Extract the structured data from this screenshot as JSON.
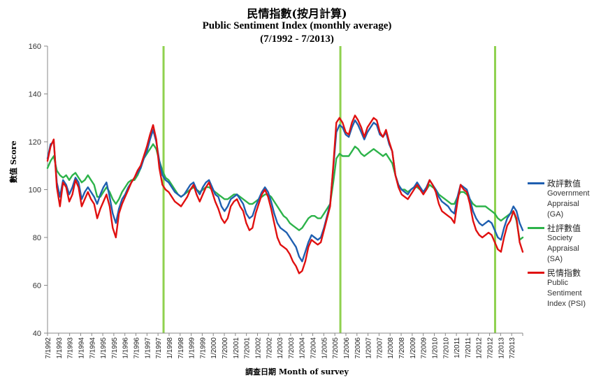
{
  "titles": {
    "zh": "民情指數(按月計算)",
    "en": "Public Sentiment Index (monthly average)",
    "period": "(7/1992 - 7/2013)"
  },
  "legend": [
    {
      "zh": "政評數值",
      "en": "Government Appraisal (GA)",
      "color": "#1f5fb0"
    },
    {
      "zh": "社評數值",
      "en": "Society Appraisal (SA)",
      "color": "#2db34a"
    },
    {
      "zh": "民情指數",
      "en": "Public Sentiment Index (PSI)",
      "color": "#e01010"
    }
  ],
  "chart_data": {
    "type": "line",
    "xlabel": "調查日期  Month  of  survey",
    "ylabel": "數值 Score",
    "ylim": [
      40,
      160
    ],
    "yticks": [
      40,
      60,
      80,
      100,
      120,
      140,
      160
    ],
    "x_tick_labels": [
      "7/1992",
      "1/1993",
      "7/1993",
      "1/1994",
      "7/1994",
      "1/1995",
      "7/1995",
      "1/1996",
      "7/1996",
      "1/1997",
      "7/1997",
      "1/1998",
      "7/1998",
      "1/1999",
      "7/1999",
      "1/2000",
      "7/2000",
      "1/2001",
      "7/2001",
      "1/2002",
      "7/2002",
      "1/2003",
      "7/2003",
      "1/2004",
      "7/2004",
      "1/2005",
      "7/2005",
      "1/2006",
      "7/2006",
      "1/2007",
      "7/2007",
      "1/2008",
      "7/2008",
      "1/2009",
      "7/2009",
      "1/2010",
      "7/2010",
      "1/2011",
      "7/2011",
      "1/2012",
      "7/2012",
      "1/2013",
      "7/2013"
    ],
    "vertical_markers": [
      "7/1997",
      "7/2005",
      "7/2012"
    ],
    "marker_color": "#8fd14f",
    "grid": false,
    "legend_position": "right",
    "series": [
      {
        "name": "政評數值 Government Appraisal (GA)",
        "color": "#1f5fb0",
        "values": [
          113,
          119,
          120,
          103,
          97,
          104,
          102,
          98,
          101,
          105,
          103,
          96,
          99,
          101,
          99,
          97,
          94,
          98,
          101,
          103,
          97,
          90,
          86,
          92,
          96,
          98,
          101,
          103,
          105,
          107,
          109,
          113,
          116,
          121,
          125,
          120,
          112,
          106,
          104,
          103,
          101,
          99,
          98,
          97,
          98,
          100,
          102,
          103,
          100,
          98,
          101,
          103,
          104,
          101,
          98,
          97,
          93,
          91,
          93,
          96,
          97,
          98,
          96,
          94,
          90,
          88,
          89,
          93,
          96,
          99,
          101,
          99,
          95,
          90,
          86,
          84,
          83,
          82,
          80,
          78,
          76,
          72,
          70,
          74,
          78,
          81,
          80,
          79,
          80,
          84,
          89,
          94,
          109,
          124,
          127,
          126,
          123,
          122,
          126,
          129,
          127,
          124,
          121,
          124,
          126,
          128,
          127,
          123,
          122,
          124,
          119,
          116,
          106,
          102,
          100,
          99,
          98,
          100,
          101,
          103,
          101,
          99,
          101,
          104,
          102,
          100,
          97,
          95,
          94,
          93,
          91,
          90,
          97,
          102,
          101,
          100,
          96,
          91,
          88,
          86,
          85,
          86,
          87,
          86,
          83,
          80,
          79,
          84,
          88,
          90,
          93,
          91,
          86,
          83
        ]
      },
      {
        "name": "社評數值 Society Appraisal (SA)",
        "color": "#2db34a",
        "values": [
          109,
          112,
          114,
          108,
          106,
          105,
          106,
          104,
          106,
          107,
          105,
          103,
          104,
          106,
          104,
          102,
          97,
          97,
          99,
          101,
          99,
          96,
          94,
          96,
          99,
          101,
          103,
          104,
          104,
          106,
          109,
          113,
          115,
          117,
          119,
          117,
          112,
          108,
          105,
          104,
          102,
          100,
          98,
          97,
          98,
          99,
          100,
          101,
          100,
          99,
          100,
          101,
          101,
          100,
          99,
          98,
          97,
          96,
          96,
          97,
          98,
          98,
          97,
          96,
          95,
          94,
          94,
          95,
          96,
          97,
          98,
          98,
          97,
          95,
          93,
          91,
          89,
          88,
          86,
          85,
          84,
          83,
          84,
          86,
          88,
          89,
          89,
          88,
          88,
          90,
          92,
          94,
          103,
          113,
          115,
          114,
          114,
          114,
          116,
          118,
          117,
          115,
          114,
          115,
          116,
          117,
          116,
          115,
          114,
          115,
          113,
          111,
          106,
          102,
          100,
          100,
          99,
          100,
          101,
          101,
          100,
          99,
          100,
          102,
          101,
          100,
          98,
          97,
          96,
          95,
          94,
          94,
          97,
          99,
          99,
          98,
          96,
          94,
          93,
          93,
          93,
          93,
          92,
          91,
          90,
          88,
          87,
          88,
          89,
          90,
          91,
          87,
          79,
          80
        ]
      },
      {
        "name": "民情指數 Public Sentiment Index (PSI)",
        "color": "#e01010",
        "values": [
          112,
          118,
          121,
          101,
          93,
          103,
          101,
          95,
          98,
          104,
          101,
          93,
          96,
          99,
          96,
          94,
          88,
          92,
          95,
          98,
          93,
          84,
          80,
          90,
          94,
          97,
          100,
          103,
          105,
          108,
          110,
          114,
          118,
          123,
          127,
          121,
          109,
          102,
          100,
          99,
          97,
          95,
          94,
          93,
          95,
          97,
          100,
          102,
          98,
          95,
          98,
          101,
          103,
          99,
          95,
          92,
          88,
          86,
          88,
          93,
          95,
          96,
          93,
          91,
          86,
          83,
          84,
          90,
          94,
          98,
          100,
          97,
          92,
          86,
          80,
          77,
          76,
          75,
          73,
          70,
          68,
          65,
          66,
          70,
          76,
          79,
          78,
          77,
          78,
          83,
          88,
          93,
          110,
          128,
          130,
          128,
          124,
          123,
          128,
          131,
          129,
          126,
          122,
          126,
          128,
          130,
          129,
          124,
          122,
          125,
          120,
          116,
          106,
          101,
          98,
          97,
          96,
          98,
          100,
          102,
          100,
          98,
          100,
          104,
          102,
          99,
          94,
          91,
          90,
          89,
          88,
          86,
          95,
          102,
          100,
          99,
          94,
          87,
          83,
          81,
          80,
          81,
          82,
          81,
          78,
          75,
          74,
          80,
          85,
          87,
          91,
          88,
          78,
          74
        ]
      }
    ]
  }
}
